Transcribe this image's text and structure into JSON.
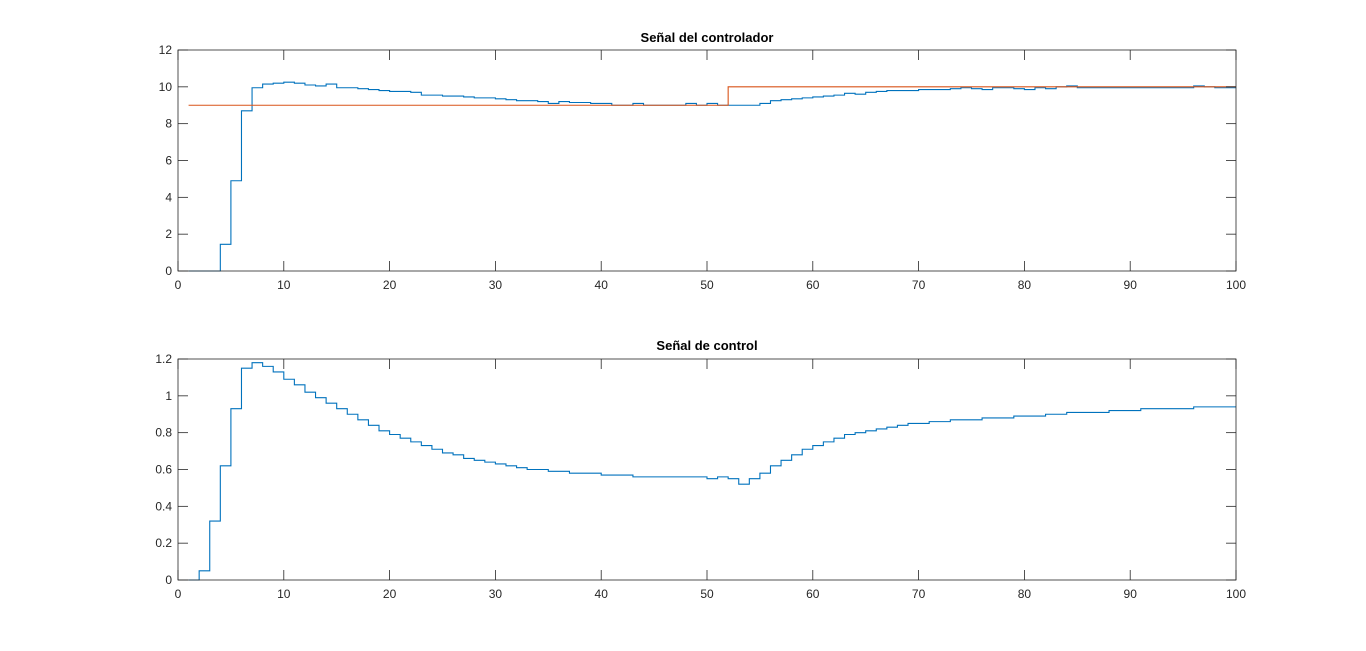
{
  "chart_data": [
    {
      "type": "line",
      "step": true,
      "title": "Señal del controlador",
      "xlabel": "",
      "ylabel": "",
      "xlim": [
        0,
        100
      ],
      "ylim": [
        0,
        12
      ],
      "xticks": [
        0,
        10,
        20,
        30,
        40,
        50,
        60,
        70,
        80,
        90,
        100
      ],
      "yticks": [
        0,
        2,
        4,
        6,
        8,
        10,
        12
      ],
      "grid": false,
      "series": [
        {
          "color": "#0072bd",
          "x": [
            1,
            2,
            3,
            4,
            5,
            6,
            7,
            8,
            9,
            10,
            11,
            12,
            13,
            14,
            15,
            16,
            17,
            18,
            19,
            20,
            21,
            22,
            23,
            24,
            25,
            26,
            27,
            28,
            29,
            30,
            31,
            32,
            33,
            34,
            35,
            36,
            37,
            38,
            39,
            40,
            41,
            42,
            43,
            44,
            45,
            46,
            47,
            48,
            49,
            50,
            51,
            52,
            53,
            54,
            55,
            56,
            57,
            58,
            59,
            60,
            61,
            62,
            63,
            64,
            65,
            66,
            67,
            68,
            69,
            70,
            71,
            72,
            73,
            74,
            75,
            76,
            77,
            78,
            79,
            80,
            81,
            82,
            83,
            84,
            85,
            86,
            87,
            88,
            89,
            90,
            91,
            92,
            93,
            94,
            95,
            96,
            97,
            98,
            99,
            100
          ],
          "y": [
            0,
            0,
            0,
            1.45,
            4.9,
            8.7,
            9.95,
            10.15,
            10.2,
            10.25,
            10.2,
            10.1,
            10.05,
            10.15,
            9.95,
            9.95,
            9.9,
            9.85,
            9.8,
            9.75,
            9.75,
            9.7,
            9.55,
            9.55,
            9.5,
            9.5,
            9.45,
            9.4,
            9.4,
            9.35,
            9.3,
            9.25,
            9.25,
            9.2,
            9.1,
            9.2,
            9.15,
            9.15,
            9.1,
            9.1,
            9.0,
            9.0,
            9.1,
            9.0,
            9.0,
            9.0,
            9.0,
            9.1,
            9.0,
            9.1,
            9.0,
            9.0,
            9.0,
            9.0,
            9.1,
            9.25,
            9.3,
            9.35,
            9.4,
            9.45,
            9.5,
            9.55,
            9.65,
            9.6,
            9.7,
            9.75,
            9.8,
            9.8,
            9.8,
            9.85,
            9.85,
            9.85,
            9.9,
            9.95,
            9.9,
            9.85,
            9.95,
            9.95,
            9.9,
            9.85,
            9.95,
            9.9,
            10.0,
            10.05,
            9.95,
            9.95,
            9.95,
            9.95,
            9.95,
            9.95,
            9.95,
            9.95,
            9.95,
            9.95,
            9.95,
            10.05,
            10.0,
            9.95,
            9.95,
            9.95
          ]
        },
        {
          "color": "#d95319",
          "x": [
            1,
            52,
            52,
            100
          ],
          "y": [
            9,
            9,
            10,
            10
          ]
        }
      ]
    },
    {
      "type": "line",
      "step": true,
      "title": "Señal de control",
      "xlabel": "",
      "ylabel": "",
      "xlim": [
        0,
        100
      ],
      "ylim": [
        0,
        1.2
      ],
      "xticks": [
        0,
        10,
        20,
        30,
        40,
        50,
        60,
        70,
        80,
        90,
        100
      ],
      "yticks": [
        0,
        0.2,
        0.4,
        0.6,
        0.8,
        1,
        1.2
      ],
      "ytick_labels": [
        "0",
        "0.2",
        "0.4",
        "0.6",
        "0.8",
        "1",
        "1.2"
      ],
      "grid": false,
      "series": [
        {
          "color": "#0072bd",
          "x": [
            1,
            2,
            3,
            4,
            5,
            6,
            7,
            8,
            9,
            10,
            11,
            12,
            13,
            14,
            15,
            16,
            17,
            18,
            19,
            20,
            21,
            22,
            23,
            24,
            25,
            26,
            27,
            28,
            29,
            30,
            31,
            32,
            33,
            34,
            35,
            36,
            37,
            38,
            39,
            40,
            41,
            42,
            43,
            44,
            45,
            46,
            47,
            48,
            49,
            50,
            51,
            52,
            53,
            54,
            55,
            56,
            57,
            58,
            59,
            60,
            61,
            62,
            63,
            64,
            65,
            66,
            67,
            68,
            69,
            70,
            71,
            72,
            73,
            74,
            75,
            76,
            77,
            78,
            79,
            80,
            81,
            82,
            83,
            84,
            85,
            86,
            87,
            88,
            89,
            90,
            91,
            92,
            93,
            94,
            95,
            96,
            97,
            98,
            99,
            100
          ],
          "y": [
            0,
            0.05,
            0.32,
            0.62,
            0.93,
            1.15,
            1.18,
            1.16,
            1.13,
            1.09,
            1.06,
            1.02,
            0.99,
            0.96,
            0.93,
            0.9,
            0.87,
            0.84,
            0.81,
            0.79,
            0.77,
            0.75,
            0.73,
            0.71,
            0.69,
            0.68,
            0.66,
            0.65,
            0.64,
            0.63,
            0.62,
            0.61,
            0.6,
            0.6,
            0.59,
            0.59,
            0.58,
            0.58,
            0.58,
            0.57,
            0.57,
            0.57,
            0.56,
            0.56,
            0.56,
            0.56,
            0.56,
            0.56,
            0.56,
            0.55,
            0.56,
            0.55,
            0.52,
            0.55,
            0.58,
            0.62,
            0.65,
            0.68,
            0.71,
            0.73,
            0.75,
            0.77,
            0.79,
            0.8,
            0.81,
            0.82,
            0.83,
            0.84,
            0.85,
            0.85,
            0.86,
            0.86,
            0.87,
            0.87,
            0.87,
            0.88,
            0.88,
            0.88,
            0.89,
            0.89,
            0.89,
            0.9,
            0.9,
            0.91,
            0.91,
            0.91,
            0.91,
            0.92,
            0.92,
            0.92,
            0.93,
            0.93,
            0.93,
            0.93,
            0.93,
            0.94,
            0.94,
            0.94,
            0.94,
            0.94
          ]
        }
      ]
    }
  ]
}
